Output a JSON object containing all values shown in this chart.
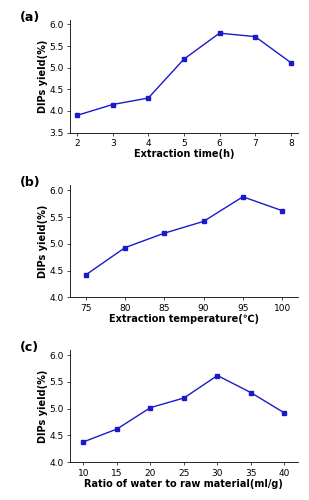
{
  "plot_a": {
    "x": [
      2,
      3,
      4,
      5,
      6,
      7,
      8
    ],
    "y": [
      3.9,
      4.15,
      4.3,
      5.2,
      5.8,
      5.72,
      5.12
    ],
    "xlabel": "Extraction time(h)",
    "ylabel": "DIPs yield(%)",
    "label": "(a)",
    "xlim": [
      1.8,
      8.2
    ],
    "ylim": [
      3.5,
      6.1
    ],
    "xticks": [
      2,
      3,
      4,
      5,
      6,
      7,
      8
    ],
    "yticks": [
      3.5,
      4.0,
      4.5,
      5.0,
      5.5,
      6.0
    ]
  },
  "plot_b": {
    "x": [
      75,
      80,
      85,
      90,
      95,
      100
    ],
    "y": [
      4.42,
      4.93,
      5.2,
      5.42,
      5.88,
      5.62
    ],
    "xlabel": "Extraction temperature(℃)",
    "ylabel": "DIPs yield(%)",
    "label": "(b)",
    "xlim": [
      73,
      102
    ],
    "ylim": [
      4.0,
      6.1
    ],
    "xticks": [
      75,
      80,
      85,
      90,
      95,
      100
    ],
    "yticks": [
      4.0,
      4.5,
      5.0,
      5.5,
      6.0
    ]
  },
  "plot_c": {
    "x": [
      10,
      15,
      20,
      25,
      30,
      35,
      40
    ],
    "y": [
      4.38,
      4.62,
      5.02,
      5.2,
      5.62,
      5.3,
      4.92
    ],
    "xlabel": "Ratio of water to raw material(ml/g)",
    "ylabel": "DIPs yield(%)",
    "label": "(c)",
    "xlim": [
      8,
      42
    ],
    "ylim": [
      4.0,
      6.1
    ],
    "xticks": [
      10,
      15,
      20,
      25,
      30,
      35,
      40
    ],
    "yticks": [
      4.0,
      4.5,
      5.0,
      5.5,
      6.0
    ]
  },
  "line_color": "#1a1acd",
  "marker": "s",
  "markersize": 3,
  "linewidth": 1.0,
  "tick_labelsize": 6.5,
  "axis_labelsize": 7.0,
  "panel_labelsize": 9
}
